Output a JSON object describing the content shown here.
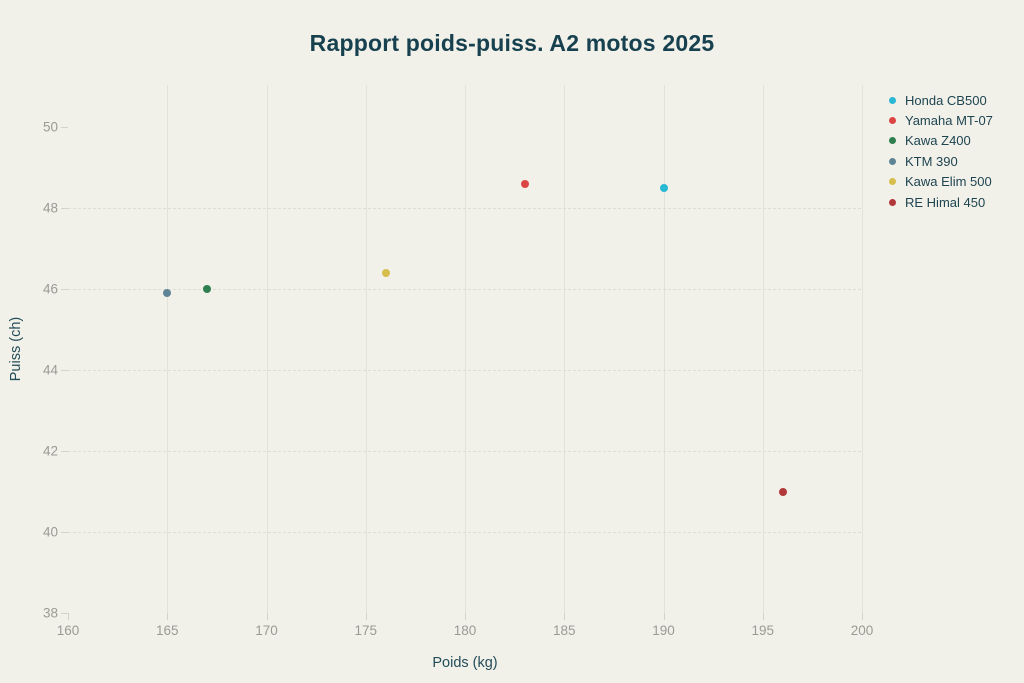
{
  "title": "Rapport poids-puiss. A2 motos 2025",
  "colors": {
    "background": "#f1f1ea",
    "gridline": "#e2e2d8",
    "tick_label": "#9b9b94",
    "text": "#1e4450"
  },
  "chart_data": {
    "type": "scatter",
    "title": "Rapport poids-puiss. A2 motos 2025",
    "xlabel": "Poids (kg)",
    "ylabel": "Puiss (ch)",
    "xlim": [
      160,
      200
    ],
    "ylim": [
      38,
      51.05
    ],
    "x_ticks": [
      160,
      165,
      170,
      175,
      180,
      185,
      190,
      195,
      200
    ],
    "y_ticks": [
      38,
      40,
      42,
      44,
      46,
      48,
      50
    ],
    "x_gridlines": [
      165,
      170,
      175,
      180,
      185,
      190,
      195,
      200
    ],
    "y_gridlines": [
      40,
      42,
      44,
      46,
      48
    ],
    "grid": true,
    "legend_position": "right",
    "series": [
      {
        "name": "Honda CB500",
        "color": "#2bb8d4",
        "points": [
          [
            190,
            48.5
          ]
        ]
      },
      {
        "name": "Yamaha MT-07",
        "color": "#dd4444",
        "points": [
          [
            183,
            48.6
          ]
        ]
      },
      {
        "name": "Kawa Z400",
        "color": "#2f7e4f",
        "points": [
          [
            167,
            46.0
          ]
        ]
      },
      {
        "name": "KTM 390",
        "color": "#5e8495",
        "points": [
          [
            165,
            45.9
          ]
        ]
      },
      {
        "name": "Kawa Elim 500",
        "color": "#d6bd4c",
        "points": [
          [
            176,
            46.4
          ]
        ]
      },
      {
        "name": "RE Himal 450",
        "color": "#b23939",
        "points": [
          [
            196,
            41.0
          ]
        ]
      }
    ]
  }
}
